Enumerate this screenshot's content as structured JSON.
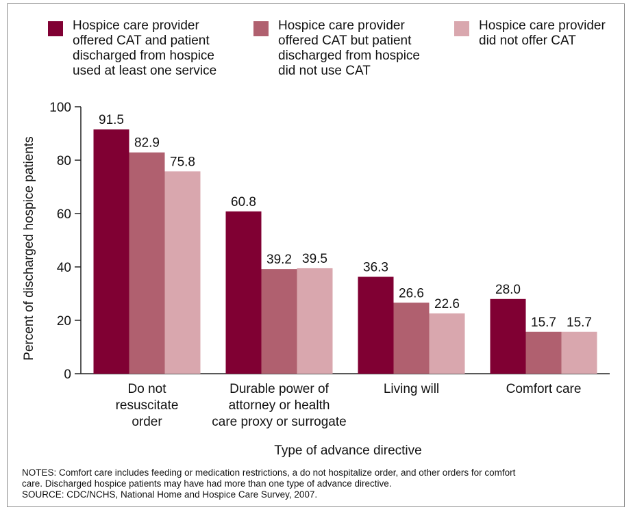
{
  "legend": [
    {
      "lines": [
        "Hospice care provider",
        "offered CAT and patient",
        "discharged from hospice",
        "used at least one service"
      ]
    },
    {
      "lines": [
        "Hospice care provider",
        "offered CAT but patient",
        "discharged from hospice",
        "did not use CAT"
      ]
    },
    {
      "lines": [
        "Hospice care provider",
        "did not offer CAT"
      ]
    }
  ],
  "chart_data": {
    "type": "bar",
    "categories": [
      [
        "Do not",
        "resuscitate",
        "order"
      ],
      [
        "Durable power of",
        "attorney or health",
        "care proxy or surrogate"
      ],
      [
        "Living will"
      ],
      [
        "Comfort care"
      ]
    ],
    "series": [
      {
        "name": "Hospice care provider offered CAT and patient discharged from hospice used at least one service",
        "color": "#800033",
        "values": [
          91.5,
          60.8,
          36.3,
          28.0
        ]
      },
      {
        "name": "Hospice care provider offered CAT but patient discharged from hospice did not use CAT",
        "color": "#b0606f",
        "values": [
          82.9,
          39.2,
          26.6,
          15.7
        ]
      },
      {
        "name": "Hospice care provider did not offer CAT",
        "color": "#d9a7ae",
        "values": [
          75.8,
          39.5,
          22.6,
          15.7
        ]
      }
    ],
    "value_labels": [
      [
        "91.5",
        "60.8",
        "36.3",
        "28.0"
      ],
      [
        "82.9",
        "39.2",
        "26.6",
        "15.7"
      ],
      [
        "75.8",
        "39.5",
        "22.6",
        "15.7"
      ]
    ],
    "ylim": [
      0,
      100
    ],
    "yticks": [
      "0",
      "20",
      "40",
      "60",
      "80",
      "100"
    ],
    "ylabel": "Percent of discharged hospice patients",
    "xlabel": "Type of advance directive",
    "grid": false,
    "legend_position": "top"
  },
  "notes": [
    "NOTES: Comfort care includes feeding or medication restrictions, a do not hospitalize order, and other orders for comfort",
    "care. Discharged hospice patients may have had more than one type of advance directive.",
    "SOURCE: CDC/NCHS, National Home and Hospice Care Survey, 2007."
  ]
}
